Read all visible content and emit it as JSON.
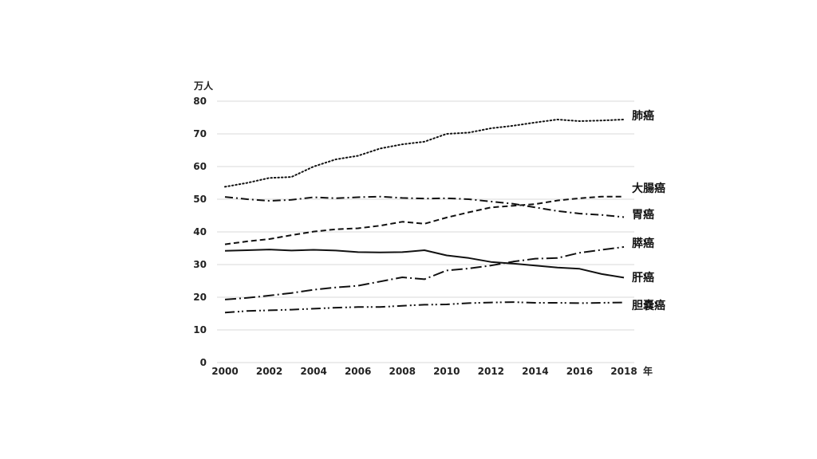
{
  "chart_data": {
    "type": "line",
    "title": "",
    "ylabel": "万人",
    "xlabel": "年",
    "ylim": [
      0,
      80
    ],
    "xlim": [
      2000,
      2018
    ],
    "yticks": [
      0,
      10,
      20,
      30,
      40,
      50,
      60,
      70,
      80
    ],
    "xticks": [
      2000,
      2002,
      2004,
      2006,
      2008,
      2010,
      2012,
      2014,
      2016,
      2018
    ],
    "grid": true,
    "legend": "labels at line ends (right)",
    "x": [
      2000,
      2001,
      2002,
      2003,
      2004,
      2005,
      2006,
      2007,
      2008,
      2009,
      2010,
      2011,
      2012,
      2013,
      2014,
      2015,
      2016,
      2017,
      2018
    ],
    "series": [
      {
        "name": "肺癌",
        "dash": "dotted",
        "values": [
          53.8,
          55.0,
          56.5,
          56.8,
          60.0,
          62.2,
          63.3,
          65.5,
          66.8,
          67.6,
          70.0,
          70.4,
          71.7,
          72.5,
          73.5,
          74.4,
          73.9,
          74.1,
          74.4
        ]
      },
      {
        "name": "大腸癌",
        "dash": "dashed",
        "values": [
          36.2,
          37.1,
          37.8,
          39.0,
          40.1,
          40.8,
          41.1,
          41.9,
          43.1,
          42.5,
          44.4,
          46.0,
          47.5,
          48.0,
          48.5,
          49.6,
          50.3,
          50.8,
          50.8
        ]
      },
      {
        "name": "胃癌",
        "dash": "dashdot",
        "values": [
          50.7,
          50.0,
          49.5,
          49.8,
          50.6,
          50.3,
          50.6,
          50.8,
          50.4,
          50.2,
          50.3,
          50.0,
          49.3,
          48.6,
          47.5,
          46.4,
          45.6,
          45.2,
          44.5
        ]
      },
      {
        "name": "膵癌",
        "dash": "longdashdot",
        "values": [
          19.3,
          19.8,
          20.5,
          21.3,
          22.3,
          23.0,
          23.5,
          24.8,
          26.1,
          25.5,
          28.2,
          28.8,
          29.7,
          30.9,
          31.8,
          32.0,
          33.6,
          34.5,
          35.4
        ]
      },
      {
        "name": "肝癌",
        "dash": "solid",
        "values": [
          34.2,
          34.4,
          34.6,
          34.3,
          34.5,
          34.3,
          33.8,
          33.7,
          33.8,
          34.4,
          32.8,
          32.0,
          30.8,
          30.3,
          29.7,
          29.1,
          28.7,
          27.1,
          26.0
        ]
      },
      {
        "name": "胆嚢癌",
        "dash": "dashdotdot",
        "values": [
          15.3,
          15.8,
          16.0,
          16.2,
          16.5,
          16.8,
          17.0,
          17.0,
          17.4,
          17.7,
          17.8,
          18.2,
          18.4,
          18.5,
          18.3,
          18.3,
          18.2,
          18.3,
          18.4
        ]
      }
    ]
  }
}
